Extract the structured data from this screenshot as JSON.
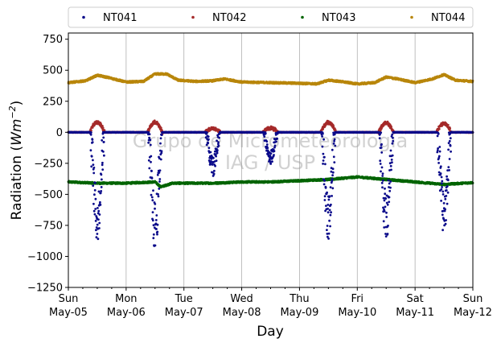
{
  "chart_data": {
    "type": "scatter",
    "title": "",
    "xlabel": "Day",
    "ylabel": "Radiation",
    "ylabel_unit": "Wm",
    "ylabel_exp": "−2",
    "ylim": [
      -1250,
      800
    ],
    "yticks": [
      -1250,
      -1000,
      -750,
      -500,
      -250,
      0,
      250,
      500,
      750
    ],
    "ytick_labels": [
      "−1250",
      "−1000",
      "−750",
      "−500",
      "−250",
      "0",
      "250",
      "500",
      "750"
    ],
    "xlim": [
      0,
      7
    ],
    "xticks": [
      {
        "day": 0,
        "weekday": "Sun",
        "date": "May-05"
      },
      {
        "day": 1,
        "weekday": "Mon",
        "date": "May-06"
      },
      {
        "day": 2,
        "weekday": "Tue",
        "date": "May-07"
      },
      {
        "day": 3,
        "weekday": "Wed",
        "date": "May-08"
      },
      {
        "day": 4,
        "weekday": "Thu",
        "date": "May-09"
      },
      {
        "day": 5,
        "weekday": "Fri",
        "date": "May-10"
      },
      {
        "day": 6,
        "weekday": "Sat",
        "date": "May-11"
      },
      {
        "day": 7,
        "weekday": "Sun",
        "date": "May-12"
      }
    ],
    "grid": "vertical",
    "legend_position": "top",
    "watermark": {
      "line1": "Grupo de Micrometeorologia",
      "line2": "IAG / USP"
    },
    "series": [
      {
        "name": "NT041",
        "color": "#0a0a8a",
        "kind": "daily_trough",
        "troughs": [
          {
            "center": 0.5,
            "width": 0.12,
            "depth": -700
          },
          {
            "center": 1.5,
            "width": 0.12,
            "depth": -760
          },
          {
            "center": 2.5,
            "width": 0.12,
            "depth": -280
          },
          {
            "center": 3.5,
            "width": 0.12,
            "depth": -200
          },
          {
            "center": 4.5,
            "width": 0.12,
            "depth": -680
          },
          {
            "center": 5.5,
            "width": 0.12,
            "depth": -690
          },
          {
            "center": 6.5,
            "width": 0.12,
            "depth": -650
          }
        ]
      },
      {
        "name": "NT042",
        "color": "#a52a2a",
        "kind": "daily_bump",
        "base": 0,
        "bumps": [
          {
            "center": 0.5,
            "width": 0.13,
            "amp": 80
          },
          {
            "center": 1.5,
            "width": 0.13,
            "amp": 80
          },
          {
            "center": 2.5,
            "width": 0.13,
            "amp": 30
          },
          {
            "center": 3.5,
            "width": 0.13,
            "amp": 35
          },
          {
            "center": 4.5,
            "width": 0.13,
            "amp": 80
          },
          {
            "center": 5.5,
            "width": 0.13,
            "amp": 75
          },
          {
            "center": 6.5,
            "width": 0.13,
            "amp": 70
          }
        ]
      },
      {
        "name": "NT043",
        "color": "#006400",
        "kind": "continuous",
        "points": [
          [
            0,
            -400
          ],
          [
            0.5,
            -410
          ],
          [
            1,
            -410
          ],
          [
            1.5,
            -400
          ],
          [
            1.6,
            -440
          ],
          [
            1.8,
            -410
          ],
          [
            2,
            -410
          ],
          [
            2.5,
            -410
          ],
          [
            3,
            -400
          ],
          [
            3.5,
            -400
          ],
          [
            4,
            -390
          ],
          [
            4.5,
            -380
          ],
          [
            5,
            -360
          ],
          [
            5.5,
            -380
          ],
          [
            6,
            -400
          ],
          [
            6.5,
            -420
          ],
          [
            7,
            -405
          ]
        ]
      },
      {
        "name": "NT044",
        "color": "#b8860b",
        "kind": "continuous",
        "points": [
          [
            0,
            400
          ],
          [
            0.3,
            415
          ],
          [
            0.5,
            460
          ],
          [
            0.7,
            440
          ],
          [
            1,
            405
          ],
          [
            1.3,
            410
          ],
          [
            1.5,
            470
          ],
          [
            1.7,
            470
          ],
          [
            1.9,
            420
          ],
          [
            2.2,
            410
          ],
          [
            2.5,
            415
          ],
          [
            2.7,
            430
          ],
          [
            3,
            405
          ],
          [
            3.5,
            400
          ],
          [
            4,
            395
          ],
          [
            4.3,
            390
          ],
          [
            4.5,
            420
          ],
          [
            4.7,
            410
          ],
          [
            5,
            390
          ],
          [
            5.3,
            400
          ],
          [
            5.5,
            445
          ],
          [
            5.7,
            430
          ],
          [
            6,
            400
          ],
          [
            6.3,
            430
          ],
          [
            6.5,
            465
          ],
          [
            6.7,
            420
          ],
          [
            7,
            410
          ]
        ]
      }
    ]
  }
}
